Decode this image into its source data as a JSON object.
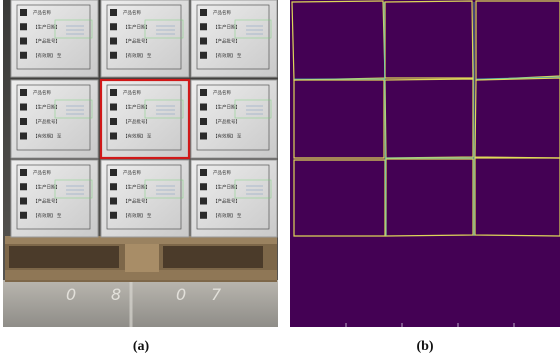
{
  "figure": {
    "panels": [
      {
        "id": "a",
        "caption": "(a)",
        "description_role": "photo"
      },
      {
        "id": "b",
        "caption": "(b)",
        "description_role": "segmentation-mask"
      }
    ]
  },
  "photo": {
    "box_label_lines": [
      "产品名称",
      "【生产日期】",
      "【产品批号】",
      "【有效期】 至"
    ],
    "pallet_marks": [
      "0",
      "8",
      "0",
      "7"
    ]
  },
  "colors": {
    "box_white": "#dcdcdc",
    "box_shadow": "#9a9a9a",
    "highlight_red": "#d01818",
    "label_green": "#7bd17b",
    "mask_bg": "#440154",
    "mask_edge_yellow": "#e6e15a",
    "mask_edge_cyan": "#4fc7c0",
    "pallet_wood": "#8a7352",
    "floor": "#a7a5a0"
  }
}
